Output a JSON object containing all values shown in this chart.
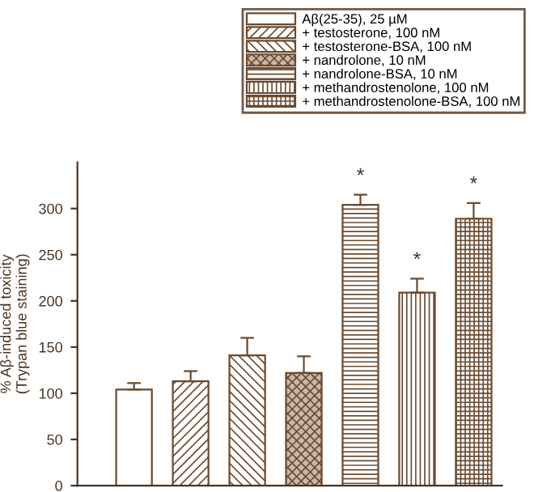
{
  "chart_data": {
    "type": "bar",
    "ylabel": "% Aβ-induced toxicity\n(Trypan blue staining)",
    "categories": [
      null,
      null,
      null,
      null,
      null,
      null,
      null
    ],
    "series": [
      {
        "name": "Aβ(25-35), 25 µM",
        "color": "#6b4a30",
        "values": [
          104,
          null,
          null,
          null,
          null,
          null,
          null
        ],
        "errors": [
          7,
          null,
          null,
          null,
          null,
          null,
          null
        ]
      },
      {
        "name": "+ testosterone, 100 nM",
        "color": "#6b4a30",
        "values": [
          null,
          113,
          null,
          null,
          null,
          null,
          null
        ],
        "errors": [
          null,
          11,
          null,
          null,
          null,
          null,
          null
        ]
      },
      {
        "name": "+ testosterone-BSA, 100 nM",
        "color": "#6b4a30",
        "values": [
          null,
          null,
          141,
          null,
          null,
          null,
          null
        ],
        "errors": [
          null,
          null,
          19,
          null,
          null,
          null,
          null
        ]
      },
      {
        "name": "+ nandrolone, 10 nM",
        "color": "#6b4a30",
        "values": [
          null,
          null,
          null,
          122,
          null,
          null,
          null
        ],
        "errors": [
          null,
          null,
          null,
          18,
          null,
          null,
          null
        ]
      },
      {
        "name": "+ nandrolone-BSA, 10 nM",
        "color": "#6b4a30",
        "values": [
          null,
          null,
          null,
          null,
          304,
          null,
          null
        ],
        "errors": [
          null,
          null,
          null,
          null,
          11,
          null,
          null
        ]
      },
      {
        "name": "+ methandrostenolone, 100 nM",
        "color": "#6b4a30",
        "values": [
          null,
          null,
          null,
          null,
          null,
          209,
          null
        ],
        "errors": [
          null,
          null,
          null,
          null,
          null,
          15,
          null
        ]
      },
      {
        "name": "+ methandrostenolone-BSA, 100 nM",
        "color": "#6b4a30",
        "values": [
          null,
          null,
          null,
          null,
          null,
          null,
          289
        ],
        "errors": [
          null,
          null,
          null,
          null,
          null,
          null,
          17
        ]
      }
    ],
    "annotations": [
      "*",
      "*",
      "*"
    ],
    "ylim": [
      0,
      350
    ],
    "yticks": [
      0,
      50,
      100,
      150,
      200,
      250,
      300
    ],
    "legend": "top right",
    "grid": false
  }
}
